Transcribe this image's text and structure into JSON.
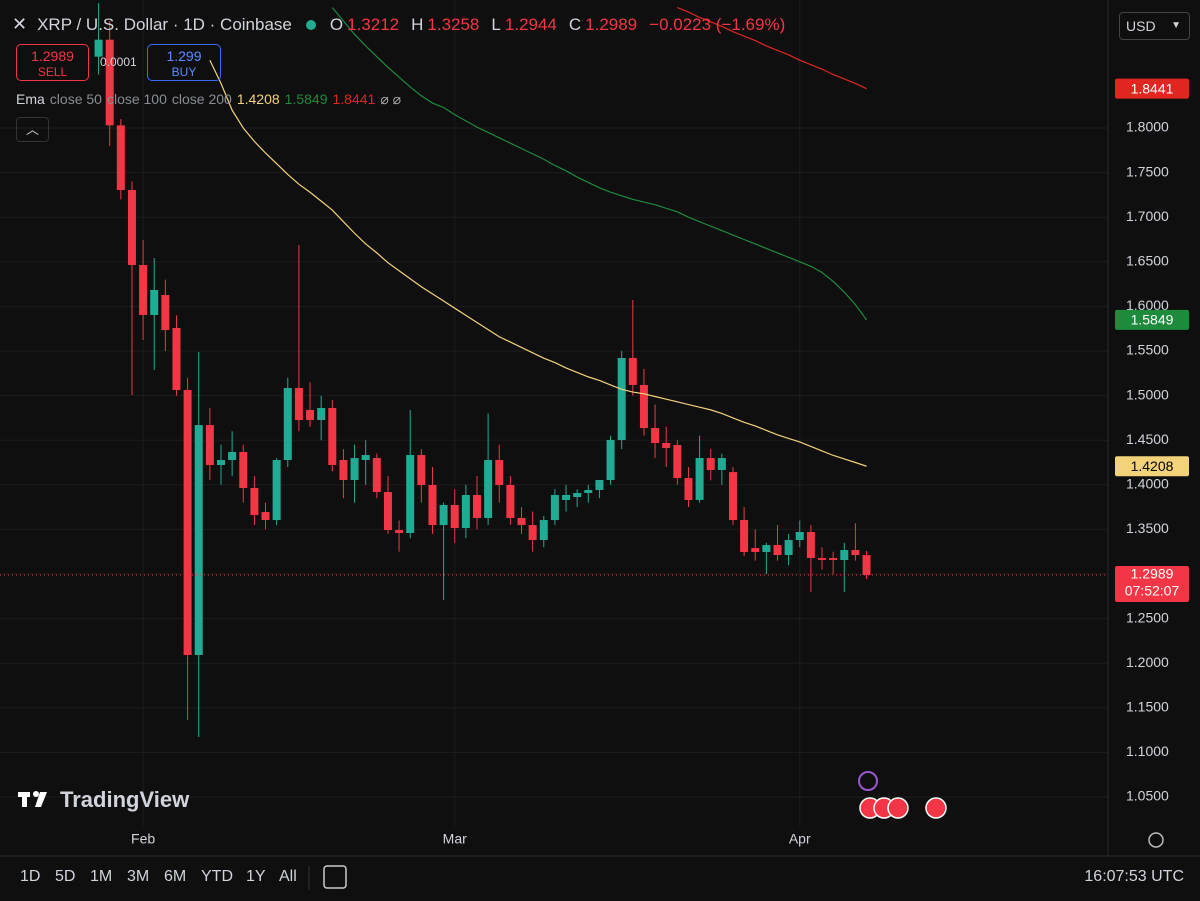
{
  "chart_data": {
    "type": "candlestick",
    "title": "XRP / U.S. Dollar · 1D · Coinbase",
    "ohlc_prefixes": [
      "O",
      "H",
      "L",
      "C"
    ],
    "change": "−0.0223 (−1.69%)",
    "indicator": "Ema",
    "countdown": "07:52:07",
    "up_color": "#22ab94",
    "down_color": "#f23645",
    "grid": true,
    "categories": [
      null,
      null,
      null,
      null,
      "Feb",
      null,
      null,
      null,
      null,
      null,
      null,
      null,
      null,
      null,
      null,
      null,
      null,
      null,
      null,
      null,
      null,
      null,
      null,
      null,
      null,
      null,
      null,
      null,
      null,
      null,
      null,
      null,
      "Mar",
      null,
      null,
      null,
      null,
      null,
      null,
      null,
      null,
      null,
      null,
      null,
      null,
      null,
      null,
      null,
      null,
      null,
      null,
      null,
      null,
      null,
      null,
      null,
      null,
      null,
      null,
      null,
      null,
      null,
      null,
      "Apr",
      null,
      null,
      null,
      null,
      null,
      null
    ],
    "open": [
      1.88,
      1.899,
      1.803,
      1.7305,
      1.6464,
      1.5904,
      1.6128,
      1.5758,
      1.5063,
      1.2092,
      1.467,
      1.4222,
      1.4278,
      1.4368,
      1.3964,
      1.3695,
      1.3605,
      1.4278,
      1.5085,
      1.4839,
      1.4726,
      1.4861,
      1.4278,
      1.4054,
      1.4278,
      1.43,
      1.3919,
      1.3493,
      1.346,
      1.4334,
      1.3998,
      1.3549,
      1.3774,
      1.3516,
      1.3886,
      1.3628,
      1.4278,
      1.3998,
      1.3628,
      1.3549,
      1.3381,
      1.3605,
      1.383,
      1.3863,
      1.3908,
      1.3942,
      1.4054,
      1.4502,
      1.5422,
      1.5119,
      1.4637,
      1.4469,
      1.4446,
      1.4076,
      1.383,
      1.43,
      1.4166,
      1.4143,
      1.3605,
      1.3291,
      1.3247,
      1.3325,
      1.3213,
      1.3381,
      1.3471,
      1.3179,
      1.3179,
      1.3157,
      1.3269,
      1.3212
    ],
    "high": [
      1.94,
      1.92,
      1.81,
      1.74,
      1.6744,
      1.6543,
      1.63,
      1.59,
      1.52,
      1.5489,
      1.4861,
      1.445,
      1.46,
      1.445,
      1.41,
      1.38,
      1.43,
      1.52,
      1.6688,
      1.515,
      1.5,
      1.495,
      1.44,
      1.445,
      1.45,
      1.435,
      1.41,
      1.36,
      1.4839,
      1.44,
      1.42,
      1.38,
      1.395,
      1.4,
      1.41,
      1.48,
      1.445,
      1.41,
      1.375,
      1.37,
      1.365,
      1.395,
      1.4,
      1.395,
      1.4,
      1.405,
      1.455,
      1.55,
      1.6072,
      1.53,
      1.49,
      1.465,
      1.45,
      1.42,
      1.455,
      1.44,
      1.435,
      1.42,
      1.375,
      1.35,
      1.335,
      1.355,
      1.345,
      1.36,
      1.355,
      1.33,
      1.325,
      1.335,
      1.357,
      1.3258
    ],
    "low": [
      1.86,
      1.78,
      1.72,
      1.5007,
      1.5623,
      1.5287,
      1.55,
      1.5,
      1.1363,
      1.1173,
      1.4054,
      1.4,
      1.41,
      1.38,
      1.355,
      1.35,
      1.355,
      1.42,
      1.46,
      1.465,
      1.45,
      1.415,
      1.385,
      1.38,
      1.4,
      1.385,
      1.345,
      1.325,
      1.34,
      1.38,
      1.345,
      1.2709,
      1.335,
      1.34,
      1.35,
      1.355,
      1.38,
      1.355,
      1.345,
      1.325,
      1.33,
      1.355,
      1.37,
      1.375,
      1.38,
      1.385,
      1.4,
      1.44,
      1.5,
      1.455,
      1.43,
      1.42,
      1.4,
      1.375,
      1.38,
      1.405,
      1.4,
      1.355,
      1.32,
      1.315,
      1.3,
      1.315,
      1.31,
      1.33,
      1.28,
      1.305,
      1.3,
      1.28,
      1.315,
      1.2944
    ],
    "close": [
      1.899,
      1.803,
      1.7305,
      1.6464,
      1.5904,
      1.6184,
      1.5735,
      1.5063,
      1.2092,
      1.467,
      1.4222,
      1.4278,
      1.4368,
      1.3964,
      1.3661,
      1.3605,
      1.4278,
      1.5085,
      1.4726,
      1.4726,
      1.4861,
      1.4222,
      1.4054,
      1.43,
      1.4334,
      1.3919,
      1.3493,
      1.346,
      1.4334,
      1.3998,
      1.3549,
      1.3774,
      1.3516,
      1.3886,
      1.3628,
      1.4278,
      1.3998,
      1.3628,
      1.3549,
      1.3381,
      1.3605,
      1.3886,
      1.3886,
      1.3908,
      1.3942,
      1.4054,
      1.4502,
      1.5422,
      1.5119,
      1.4637,
      1.4469,
      1.4413,
      1.4076,
      1.383,
      1.43,
      1.4166,
      1.43,
      1.3605,
      1.3247,
      1.3247,
      1.3325,
      1.3213,
      1.3381,
      1.3471,
      1.3179,
      1.3157,
      1.3157,
      1.3269,
      1.3212,
      1.2989
    ],
    "series": [
      {
        "name": "close 50",
        "color": "#f2d27a",
        "values": [
          null,
          null,
          null,
          null,
          null,
          null,
          null,
          null,
          null,
          null,
          1.876,
          1.85,
          1.82,
          1.8,
          1.785,
          1.772,
          1.76,
          1.748,
          1.737,
          1.728,
          1.718,
          1.708,
          1.695,
          1.682,
          1.67,
          1.66,
          1.649,
          1.64,
          1.631,
          1.622,
          1.614,
          1.606,
          1.598,
          1.59,
          1.582,
          1.574,
          1.566,
          1.56,
          1.554,
          1.548,
          1.542,
          1.537,
          1.531,
          1.526,
          1.521,
          1.517,
          1.512,
          1.507,
          1.504,
          1.502,
          1.499,
          1.496,
          1.493,
          1.49,
          1.487,
          1.484,
          1.48,
          1.475,
          1.47,
          1.466,
          1.461,
          1.456,
          1.452,
          1.448,
          1.443,
          1.438,
          1.433,
          1.429,
          1.425,
          1.4208
        ]
      },
      {
        "name": "close 100",
        "color": "#1e8a3c",
        "values": [
          null,
          null,
          null,
          null,
          null,
          null,
          null,
          null,
          null,
          null,
          null,
          null,
          null,
          null,
          null,
          null,
          null,
          null,
          null,
          null,
          null,
          1.935,
          1.92,
          1.905,
          1.892,
          1.88,
          1.868,
          1.857,
          1.846,
          1.836,
          1.828,
          1.823,
          1.815,
          1.808,
          1.801,
          1.795,
          1.789,
          1.783,
          1.777,
          1.771,
          1.765,
          1.758,
          1.752,
          1.745,
          1.739,
          1.733,
          1.728,
          1.724,
          1.72,
          1.717,
          1.714,
          1.71,
          1.706,
          1.7,
          1.695,
          1.69,
          1.685,
          1.68,
          1.675,
          1.67,
          1.665,
          1.66,
          1.655,
          1.65,
          1.645,
          1.638,
          1.628,
          1.616,
          1.602,
          1.5849
        ]
      },
      {
        "name": "close 200",
        "color": "#e0271f",
        "values": [
          null,
          null,
          null,
          null,
          null,
          null,
          null,
          null,
          null,
          null,
          null,
          null,
          null,
          null,
          null,
          null,
          null,
          null,
          null,
          null,
          null,
          null,
          null,
          null,
          null,
          null,
          null,
          null,
          null,
          null,
          null,
          null,
          null,
          null,
          null,
          null,
          null,
          null,
          null,
          null,
          null,
          null,
          null,
          null,
          null,
          null,
          null,
          null,
          null,
          null,
          null,
          null,
          1.935,
          1.93,
          1.924,
          1.919,
          1.914,
          1.908,
          1.903,
          1.898,
          1.892,
          1.887,
          1.882,
          1.876,
          1.871,
          1.866,
          1.86,
          1.855,
          1.85,
          1.8441
        ]
      }
    ],
    "ylim": [
      1.0175,
      1.9435
    ],
    "yticks": [
      {
        "value": 1.05,
        "label": "1.0500"
      },
      {
        "value": 1.1,
        "label": "1.1000"
      },
      {
        "value": 1.15,
        "label": "1.1500"
      },
      {
        "value": 1.2,
        "label": "1.2000"
      },
      {
        "value": 1.25,
        "label": "1.2500"
      },
      {
        "value": 1.3,
        "label": "1.3000"
      },
      {
        "value": 1.35,
        "label": "1.3500"
      },
      {
        "value": 1.4,
        "label": "1.4000"
      },
      {
        "value": 1.45,
        "label": "1.4500"
      },
      {
        "value": 1.5,
        "label": "1.5000"
      },
      {
        "value": 1.55,
        "label": "1.5500"
      },
      {
        "value": 1.6,
        "label": "1.6000"
      },
      {
        "value": 1.65,
        "label": "1.6500"
      },
      {
        "value": 1.7,
        "label": "1.7000"
      },
      {
        "value": 1.75,
        "label": "1.7500"
      },
      {
        "value": 1.8,
        "label": "1.8000"
      }
    ]
  },
  "trade": {
    "sell_price": 1.2989,
    "sell_label": "SELL",
    "spread": 0.0001,
    "buy_price": 1.299,
    "buy_label": "BUY"
  },
  "currency": "USD",
  "logo": "TradingView",
  "ranges": [
    "1D",
    "5D",
    "1M",
    "3M",
    "6M",
    "YTD",
    "1Y",
    "All"
  ],
  "clock": "16:07:53 UTC"
}
